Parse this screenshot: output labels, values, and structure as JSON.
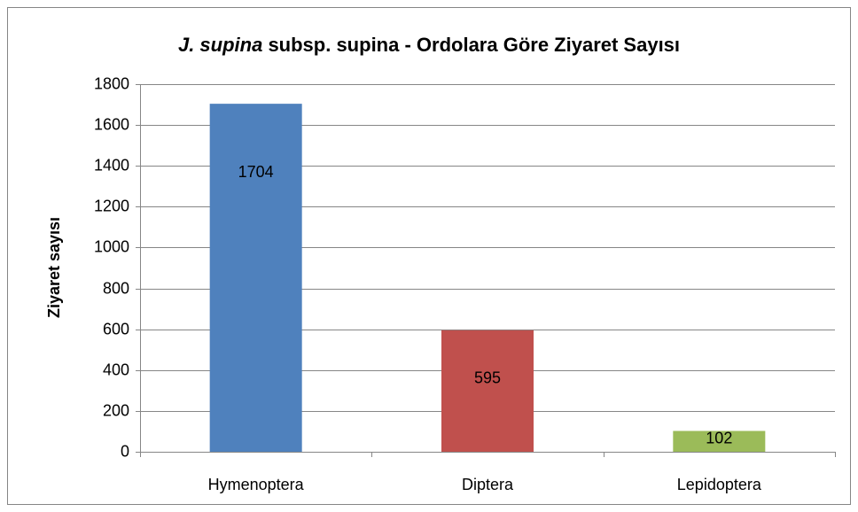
{
  "chart_data": {
    "type": "bar",
    "title": [
      "J. supina",
      " subsp. supina - Ordolara Göre Ziyaret Sayısı"
    ],
    "ylabel": "Ziyaret sayısı",
    "categories": [
      "Hymenoptera",
      "Diptera",
      "Lepidoptera"
    ],
    "values": [
      1704,
      595,
      102
    ],
    "colors": [
      "#4f81bd",
      "#c0504d",
      "#9bbb59"
    ],
    "ylim": [
      0,
      1800
    ],
    "yticks": [
      0,
      200,
      400,
      600,
      800,
      1000,
      1200,
      1400,
      1600,
      1800
    ],
    "grid": true
  }
}
